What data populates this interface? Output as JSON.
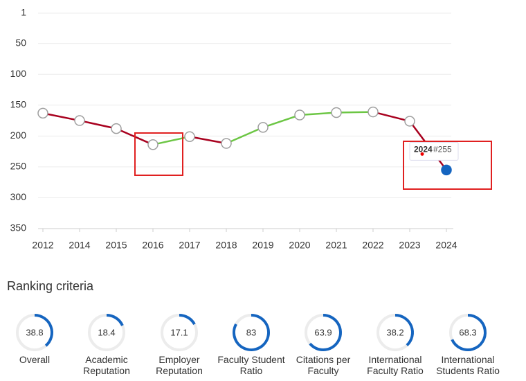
{
  "chart_data": [
    {
      "type": "line",
      "categories": [
        "2012",
        "2014",
        "2015",
        "2016",
        "2017",
        "2018",
        "2019",
        "2020",
        "2021",
        "2022",
        "2023",
        "2024"
      ],
      "values": [
        163,
        175,
        188,
        214,
        201,
        212,
        186,
        166,
        162,
        161,
        176,
        255
      ],
      "ylim": [
        1,
        350
      ],
      "y_inverted": true,
      "yticks": [
        1,
        50,
        100,
        150,
        200,
        250,
        300,
        350
      ],
      "grid": true,
      "colors": {
        "worse": "#a8001e",
        "better": "#6cc644",
        "marker": "#9e9e9e",
        "highlight": "#1565c0"
      },
      "annotations": [
        {
          "x": "2024",
          "label": "2024",
          "text": "#255"
        }
      ]
    },
    {
      "type": "gauge",
      "title": "Ranking criteria",
      "categories": [
        "Overall",
        "Academic Reputation",
        "Employer Reputation",
        "Faculty Student Ratio",
        "Citations per Faculty",
        "International Faculty Ratio",
        "International Students Ratio"
      ],
      "values": [
        38.8,
        18.4,
        17.1,
        83,
        63.9,
        38.2,
        68.3
      ],
      "ylim": [
        0,
        100
      ],
      "color": "#1565c0",
      "track_color": "#ececec"
    }
  ]
}
